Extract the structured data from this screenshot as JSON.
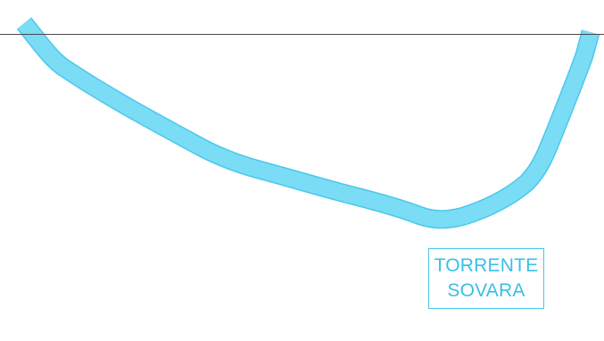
{
  "map": {
    "river_label": {
      "line1": "TORRENTE",
      "line2": "SOVARA"
    },
    "colors": {
      "river_fill": "#7adcf5",
      "river_edge": "#4cc8ea",
      "label_text": "#38bfe6",
      "label_border": "#46c7e8",
      "border_line": "#4a4a4a",
      "background": "#ffffff"
    },
    "features": [
      "river",
      "frame-border-line",
      "river-name-label"
    ]
  }
}
